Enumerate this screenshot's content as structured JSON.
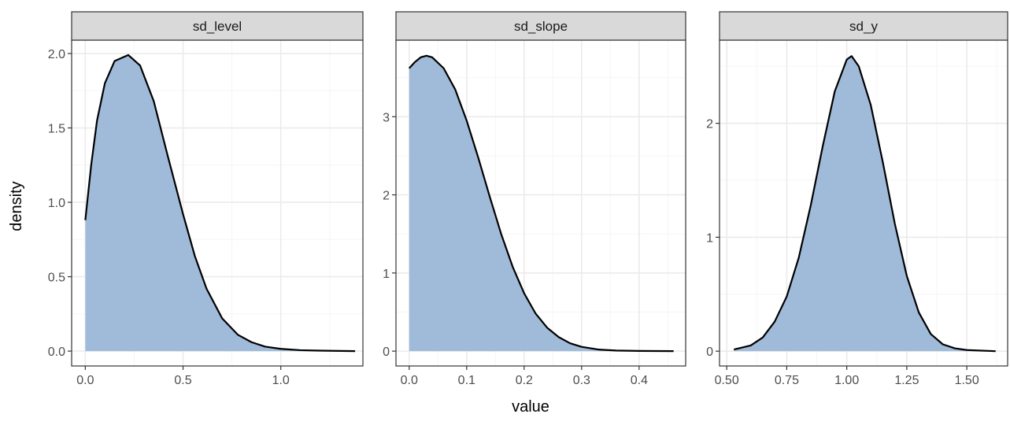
{
  "chart_data": {
    "type": "area",
    "xlabel": "value",
    "ylabel": "density",
    "facets": [
      {
        "name": "sd_level",
        "xlim": [
          -0.07,
          1.42
        ],
        "ylim": [
          -0.1,
          2.09
        ],
        "x_ticks": [
          0.0,
          0.5,
          1.0
        ],
        "x_tick_labels": [
          "0.0",
          "0.5",
          "1.0"
        ],
        "y_ticks": [
          0.0,
          0.5,
          1.0,
          1.5,
          2.0
        ],
        "y_tick_labels": [
          "0.0",
          "0.5",
          "1.0",
          "1.5",
          "2.0"
        ],
        "points": [
          [
            0.0,
            0.88
          ],
          [
            0.03,
            1.25
          ],
          [
            0.06,
            1.55
          ],
          [
            0.1,
            1.8
          ],
          [
            0.15,
            1.95
          ],
          [
            0.22,
            1.99
          ],
          [
            0.28,
            1.92
          ],
          [
            0.35,
            1.68
          ],
          [
            0.42,
            1.32
          ],
          [
            0.5,
            0.92
          ],
          [
            0.56,
            0.64
          ],
          [
            0.62,
            0.42
          ],
          [
            0.7,
            0.22
          ],
          [
            0.78,
            0.11
          ],
          [
            0.85,
            0.06
          ],
          [
            0.92,
            0.03
          ],
          [
            1.0,
            0.015
          ],
          [
            1.1,
            0.006
          ],
          [
            1.2,
            0.003
          ],
          [
            1.38,
            0.0
          ]
        ]
      },
      {
        "name": "sd_slope",
        "xlim": [
          -0.023,
          0.481
        ],
        "ylim": [
          -0.19,
          3.98
        ],
        "x_ticks": [
          0.0,
          0.1,
          0.2,
          0.3,
          0.4
        ],
        "x_tick_labels": [
          "0.0",
          "0.1",
          "0.2",
          "0.3",
          "0.4"
        ],
        "y_ticks": [
          0,
          1,
          2,
          3
        ],
        "y_tick_labels": [
          "0",
          "1",
          "2",
          "3"
        ],
        "points": [
          [
            0.0,
            3.62
          ],
          [
            0.01,
            3.7
          ],
          [
            0.02,
            3.76
          ],
          [
            0.03,
            3.78
          ],
          [
            0.04,
            3.76
          ],
          [
            0.06,
            3.62
          ],
          [
            0.08,
            3.35
          ],
          [
            0.1,
            2.95
          ],
          [
            0.12,
            2.48
          ],
          [
            0.14,
            1.98
          ],
          [
            0.16,
            1.5
          ],
          [
            0.18,
            1.08
          ],
          [
            0.2,
            0.74
          ],
          [
            0.22,
            0.48
          ],
          [
            0.24,
            0.3
          ],
          [
            0.26,
            0.18
          ],
          [
            0.28,
            0.1
          ],
          [
            0.3,
            0.055
          ],
          [
            0.33,
            0.02
          ],
          [
            0.36,
            0.008
          ],
          [
            0.4,
            0.003
          ],
          [
            0.46,
            0.0
          ]
        ]
      },
      {
        "name": "sd_y",
        "xlim": [
          0.47,
          1.67
        ],
        "ylim": [
          -0.13,
          2.73
        ],
        "x_ticks": [
          0.5,
          0.75,
          1.0,
          1.25,
          1.5
        ],
        "x_tick_labels": [
          "0.50",
          "0.75",
          "1.00",
          "1.25",
          "1.50"
        ],
        "y_ticks": [
          0,
          1,
          2
        ],
        "y_tick_labels": [
          "0",
          "1",
          "2"
        ],
        "points": [
          [
            0.53,
            0.015
          ],
          [
            0.6,
            0.05
          ],
          [
            0.65,
            0.12
          ],
          [
            0.7,
            0.26
          ],
          [
            0.75,
            0.48
          ],
          [
            0.8,
            0.82
          ],
          [
            0.85,
            1.28
          ],
          [
            0.9,
            1.8
          ],
          [
            0.95,
            2.28
          ],
          [
            1.0,
            2.56
          ],
          [
            1.02,
            2.59
          ],
          [
            1.05,
            2.5
          ],
          [
            1.1,
            2.16
          ],
          [
            1.15,
            1.66
          ],
          [
            1.2,
            1.12
          ],
          [
            1.25,
            0.66
          ],
          [
            1.3,
            0.34
          ],
          [
            1.35,
            0.15
          ],
          [
            1.4,
            0.06
          ],
          [
            1.45,
            0.025
          ],
          [
            1.5,
            0.01
          ],
          [
            1.62,
            0.0
          ]
        ]
      }
    ],
    "fill_color": "#a0bbd9",
    "line_color": "#000000",
    "strip_color": "#d9d9d9",
    "grid_major_color": "#ebebeb",
    "grid_minor_color": "#f5f5f5"
  }
}
